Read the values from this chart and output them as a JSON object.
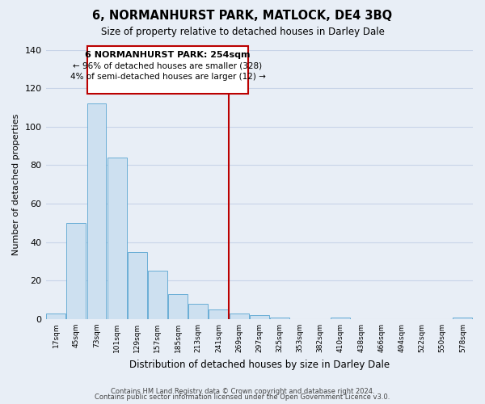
{
  "title": "6, NORMANHURST PARK, MATLOCK, DE4 3BQ",
  "subtitle": "Size of property relative to detached houses in Darley Dale",
  "xlabel": "Distribution of detached houses by size in Darley Dale",
  "ylabel": "Number of detached properties",
  "footer_line1": "Contains HM Land Registry data © Crown copyright and database right 2024.",
  "footer_line2": "Contains public sector information licensed under the Open Government Licence v3.0.",
  "bin_labels": [
    "17sqm",
    "45sqm",
    "73sqm",
    "101sqm",
    "129sqm",
    "157sqm",
    "185sqm",
    "213sqm",
    "241sqm",
    "269sqm",
    "297sqm",
    "325sqm",
    "353sqm",
    "382sqm",
    "410sqm",
    "438sqm",
    "466sqm",
    "494sqm",
    "522sqm",
    "550sqm",
    "578sqm"
  ],
  "bar_values": [
    3,
    50,
    112,
    84,
    35,
    25,
    13,
    8,
    5,
    3,
    2,
    1,
    0,
    0,
    1,
    0,
    0,
    0,
    0,
    0,
    1
  ],
  "bar_color": "#cde0f0",
  "bar_edge_color": "#6aaed6",
  "ylim": [
    0,
    140
  ],
  "yticks": [
    0,
    20,
    40,
    60,
    80,
    100,
    120,
    140
  ],
  "vline_x_index": 8.5,
  "vline_color": "#bb0000",
  "annotation_box_text_line1": "6 NORMANHURST PARK: 254sqm",
  "annotation_box_text_line2": "← 96% of detached houses are smaller (328)",
  "annotation_box_text_line3": "4% of semi-detached houses are larger (12) →",
  "annotation_box_color": "#bb0000",
  "annotation_box_fill": "#ffffff",
  "grid_color": "#c8d4e8",
  "background_color": "#e8eef6",
  "plot_bg_color": "#e8eef6"
}
